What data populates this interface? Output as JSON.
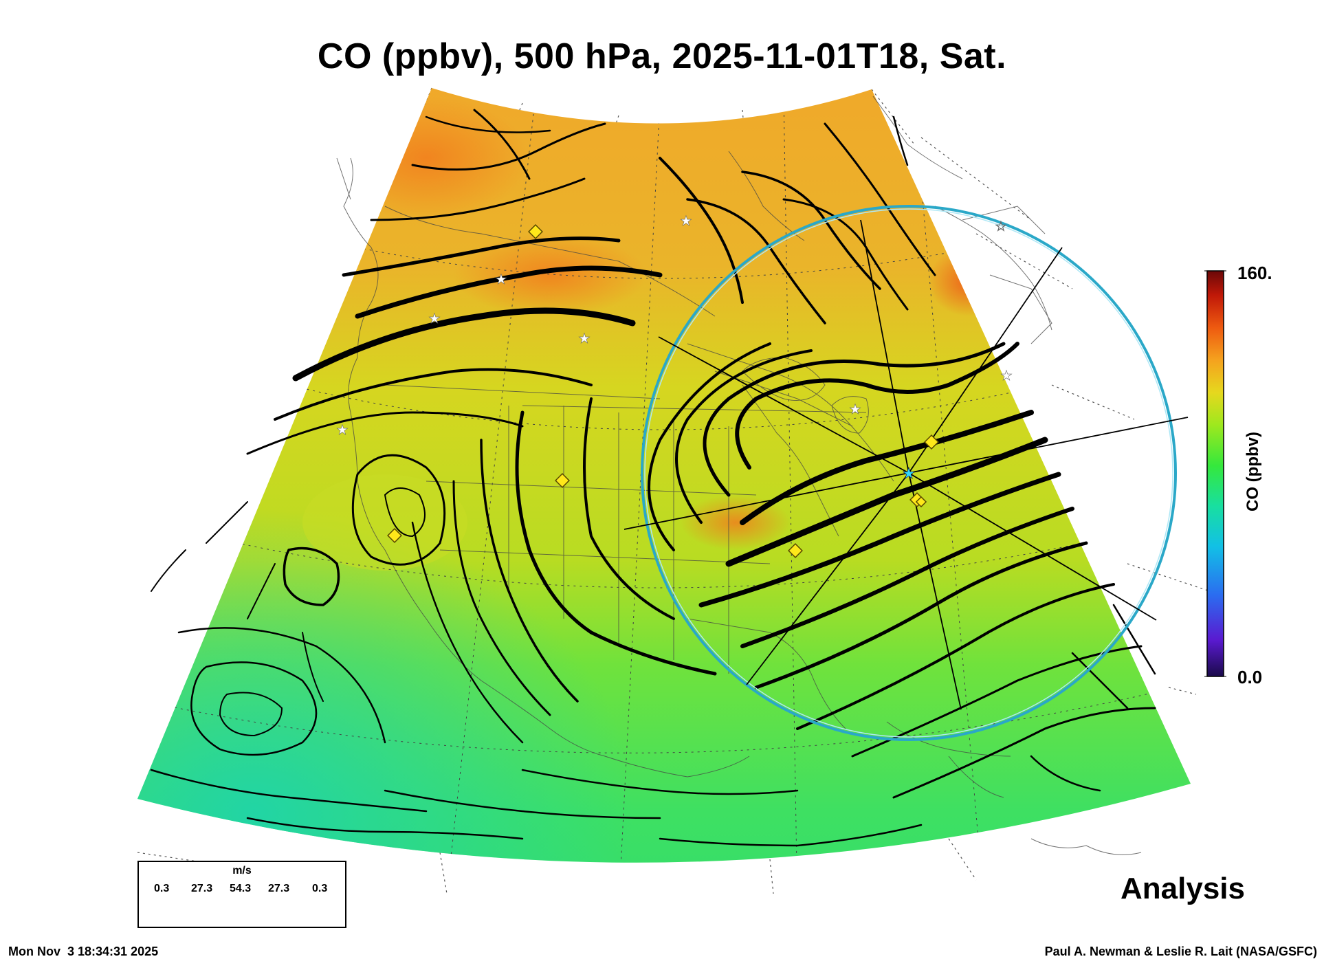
{
  "title": "CO (ppbv), 500 hPa, 2025-11-01T18, Sat.",
  "colorbar": {
    "max_label": "160.",
    "min_label": "0.0",
    "title": "CO (ppbv)",
    "range": [
      0,
      160
    ],
    "colors": [
      "#1a0a4a",
      "#5a1ad0",
      "#2b6cf0",
      "#12c0e6",
      "#18dfa0",
      "#35e83c",
      "#9ee81e",
      "#e6d81e",
      "#f5a21e",
      "#ee5a10",
      "#c01808",
      "#6a0808"
    ]
  },
  "wind_legend": {
    "unit": "m/s",
    "ticks": [
      "0.3",
      "27.3",
      "54.3",
      "27.3",
      "0.3"
    ]
  },
  "analysis_label": "Analysis",
  "footer": {
    "timestamp": "Mon Nov  3 18:34:31 2025",
    "credit": "Paul A. Newman & Leslie R. Lait (NASA/GSFC)"
  },
  "map": {
    "projection": "conic",
    "region": "North America",
    "field_colors": {
      "north_high": "#f2a826",
      "mid": "#d6d820",
      "south_low": "#4ee45a",
      "southwest_low": "#22d89a"
    }
  },
  "markers": {
    "white_stars": 9,
    "yellow_diamonds": 7,
    "cyan_center_star": 1
  },
  "range_ring": {
    "color": "#2aa8c8"
  }
}
